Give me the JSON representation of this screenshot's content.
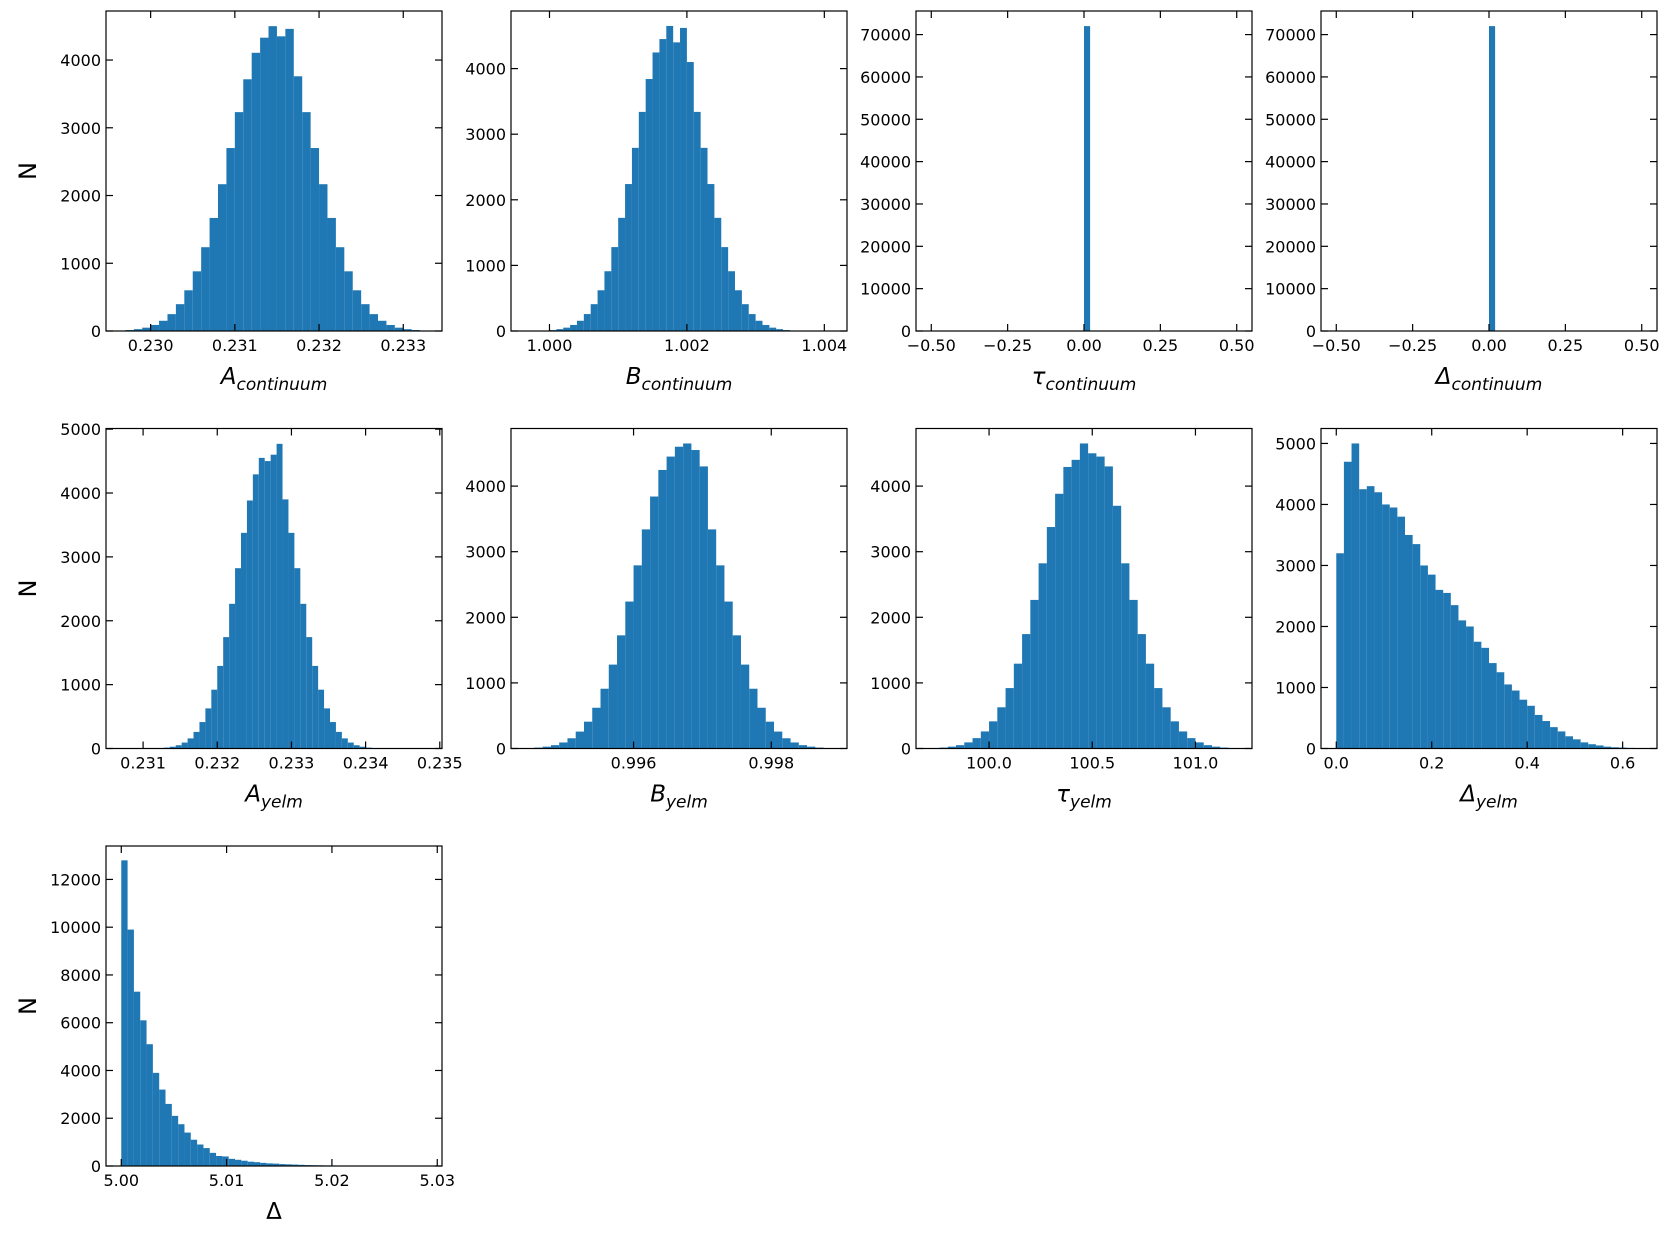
{
  "chart_data": [
    {
      "type": "histogram",
      "xlabel": "A",
      "xlabel_sub": "continuum",
      "ylabel": "N",
      "color": "#1f77b4",
      "bins": [
        0.2296,
        0.2297,
        0.2298,
        0.2299,
        0.23,
        0.2301,
        0.2302,
        0.2303,
        0.2304,
        0.2305,
        0.2306,
        0.2307,
        0.2308,
        0.2309,
        0.231,
        0.2311,
        0.2312,
        0.2313,
        0.2314,
        0.2315,
        0.2316,
        0.2317,
        0.2318,
        0.2319,
        0.232,
        0.2321,
        0.2322,
        0.2323,
        0.2324,
        0.2325,
        0.2326,
        0.2327,
        0.2328,
        0.2329,
        0.233,
        0.2331,
        0.2332,
        0.2333
      ],
      "values": [
        7,
        14,
        27,
        49,
        89,
        151,
        249,
        396,
        601,
        881,
        1237,
        1669,
        2167,
        2701,
        3231,
        3716,
        4107,
        4330,
        4500,
        4350,
        4460,
        3760,
        3231,
        2701,
        2167,
        1669,
        1237,
        881,
        601,
        396,
        249,
        151,
        89,
        49,
        27,
        14,
        7
      ],
      "xlim": [
        0.22947,
        0.23346
      ],
      "xticks": [
        {
          "value": 0.23,
          "label": "0.230"
        },
        0.231,
        0.232,
        0.233
      ],
      "ylim": [
        0,
        4724
      ],
      "yticks": [
        0,
        1000,
        2000,
        3000,
        4000
      ]
    },
    {
      "type": "histogram",
      "xlabel": "B",
      "xlabel_sub": "continuum",
      "color": "#1f77b4",
      "bins": [
        0.9999,
        1,
        1.0001,
        1.0002,
        1.0003,
        1.0004,
        1.0005,
        1.0006,
        1.0007,
        1.0008,
        1.0009,
        1.001,
        1.0011,
        1.0012,
        1.0013,
        1.0014,
        1.0015,
        1.0016,
        1.0017,
        1.0018,
        1.0019,
        1.002,
        1.0021,
        1.0022,
        1.0023,
        1.0024,
        1.0025,
        1.0026,
        1.0027,
        1.0028,
        1.0029,
        1.003,
        1.0031,
        1.0032,
        1.0033,
        1.0034,
        1.0035,
        1.0036
      ],
      "values": [
        7,
        14,
        28,
        51,
        92,
        156,
        258,
        409,
        621,
        911,
        1279,
        1725,
        2240,
        2792,
        3340,
        3841,
        4246,
        4450,
        4650,
        4400,
        4620,
        4100,
        3340,
        2792,
        2240,
        1725,
        1279,
        911,
        621,
        409,
        258,
        156,
        92,
        51,
        28,
        14,
        7
      ],
      "xlim": [
        0.99944,
        1.00433
      ],
      "xticks": [
        {
          "value": 1,
          "label": "1.000"
        },
        1.002,
        1.004
      ],
      "ylim": [
        0,
        4878
      ],
      "yticks": [
        0,
        1000,
        2000,
        3000,
        4000
      ]
    },
    {
      "type": "histogram",
      "xlabel": "τ",
      "xlabel_sub": "continuum",
      "color": "#1f77b4",
      "bins": [
        0,
        0.02
      ],
      "values": [
        72000
      ],
      "xlim": [
        -0.55,
        0.55
      ],
      "xticks": [
        {
          "value": -0.5,
          "label": "−0.50"
        },
        {
          "value": -0.25,
          "label": "−0.25"
        },
        {
          "value": 0,
          "label": "0.00"
        },
        0.25,
        {
          "value": 0.5,
          "label": "0.50"
        }
      ],
      "ylim": [
        0,
        75570
      ],
      "yticks": [
        0,
        10000,
        20000,
        30000,
        40000,
        50000,
        60000,
        70000
      ]
    },
    {
      "type": "histogram",
      "xlabel": "Δ",
      "xlabel_sub": "continuum",
      "color": "#1f77b4",
      "bins": [
        0,
        0.02
      ],
      "values": [
        72000
      ],
      "xlim": [
        -0.55,
        0.55
      ],
      "xticks": [
        {
          "value": -0.5,
          "label": "−0.50"
        },
        {
          "value": -0.25,
          "label": "−0.25"
        },
        {
          "value": 0,
          "label": "0.00"
        },
        0.25,
        {
          "value": 0.5,
          "label": "0.50"
        }
      ],
      "ylim": [
        0,
        75570
      ],
      "yticks": [
        0,
        10000,
        20000,
        30000,
        40000,
        50000,
        60000,
        70000
      ]
    },
    {
      "type": "histogram",
      "xlabel": "A",
      "xlabel_sub": "yelm",
      "ylabel": "N",
      "color": "#1f77b4",
      "bins": [
        0.2312,
        0.23128,
        0.23136,
        0.23144,
        0.23152,
        0.2316,
        0.23168,
        0.23176,
        0.23184,
        0.23192,
        0.232,
        0.23208,
        0.23216,
        0.23224,
        0.23232,
        0.2324,
        0.23248,
        0.23256,
        0.23264,
        0.23272,
        0.2328,
        0.23288,
        0.23296,
        0.23304,
        0.23312,
        0.2332,
        0.23328,
        0.23336,
        0.23344,
        0.23352,
        0.2336,
        0.23368,
        0.23376,
        0.23384,
        0.23392,
        0.234,
        0.23408,
        0.23416
      ],
      "values": [
        7,
        14,
        28,
        51,
        93,
        158,
        260,
        414,
        628,
        921,
        1293,
        1744,
        2265,
        2823,
        3376,
        3883,
        4292,
        4550,
        4500,
        4600,
        4770,
        3900,
        3376,
        2823,
        2265,
        1744,
        1293,
        921,
        628,
        414,
        260,
        158,
        93,
        51,
        28,
        14,
        7
      ],
      "xlim": [
        0.2305,
        0.23503
      ],
      "xticks": [
        0.231,
        0.232,
        0.233,
        0.234,
        0.235
      ],
      "ylim": [
        0,
        5010
      ],
      "yticks": [
        0,
        1000,
        2000,
        3000,
        4000,
        5000
      ]
    },
    {
      "type": "histogram",
      "xlabel": "B",
      "xlabel_sub": "yelm",
      "color": "#1f77b4",
      "bins": [
        0.99444,
        0.99456,
        0.99468,
        0.9948,
        0.99492,
        0.99504,
        0.99516,
        0.99528,
        0.9954,
        0.99552,
        0.99564,
        0.99576,
        0.99588,
        0.996,
        0.99612,
        0.99624,
        0.99636,
        0.99648,
        0.9966,
        0.99672,
        0.99684,
        0.99696,
        0.99708,
        0.9972,
        0.99732,
        0.99744,
        0.99756,
        0.99768,
        0.9978,
        0.99792,
        0.99804,
        0.99816,
        0.99828,
        0.9984,
        0.99852,
        0.99864,
        0.99876,
        0.99888
      ],
      "values": [
        7,
        14,
        28,
        51,
        92,
        156,
        258,
        409,
        621,
        911,
        1279,
        1725,
        2240,
        2792,
        3340,
        3841,
        4246,
        4450,
        4600,
        4650,
        4550,
        4300,
        3340,
        2792,
        2240,
        1725,
        1279,
        911,
        621,
        409,
        258,
        156,
        92,
        51,
        28,
        14,
        7
      ],
      "xlim": [
        0.99422,
        0.9991
      ],
      "xticks": [
        0.996,
        0.998
      ],
      "ylim": [
        0,
        4878
      ],
      "yticks": [
        0,
        1000,
        2000,
        3000,
        4000
      ]
    },
    {
      "type": "histogram",
      "xlabel": "τ",
      "xlabel_sub": "yelm",
      "color": "#1f77b4",
      "bins": [
        99.72,
        99.76,
        99.8,
        99.84,
        99.88,
        99.92,
        99.96,
        100,
        100.04,
        100.08,
        100.12,
        100.16,
        100.2,
        100.24,
        100.28,
        100.32,
        100.36,
        100.4,
        100.44,
        100.48,
        100.52,
        100.56,
        100.6,
        100.64,
        100.68,
        100.72,
        100.76,
        100.8,
        100.84,
        100.88,
        100.92,
        100.96,
        101,
        101.04,
        101.08,
        101.12,
        101.16,
        101.2
      ],
      "values": [
        7,
        14,
        28,
        51,
        93,
        158,
        260,
        414,
        628,
        921,
        1293,
        1744,
        2265,
        2823,
        3376,
        3883,
        4292,
        4400,
        4650,
        4500,
        4450,
        4300,
        3700,
        2823,
        2265,
        1744,
        1293,
        921,
        628,
        414,
        260,
        158,
        93,
        51,
        28,
        14,
        7
      ],
      "xlim": [
        99.646,
        101.274
      ],
      "xticks": [
        {
          "value": 100,
          "label": "100.0"
        },
        100.5,
        {
          "value": 101,
          "label": "101.0"
        }
      ],
      "ylim": [
        0,
        4878
      ],
      "yticks": [
        0,
        1000,
        2000,
        3000,
        4000
      ]
    },
    {
      "type": "histogram",
      "xlabel": "Δ",
      "xlabel_sub": "yelm",
      "color": "#1f77b4",
      "bins": [
        0,
        0.016,
        0.032,
        0.048,
        0.064,
        0.08,
        0.096,
        0.112,
        0.128,
        0.144,
        0.16,
        0.176,
        0.192,
        0.208,
        0.224,
        0.24,
        0.256,
        0.272,
        0.288,
        0.304,
        0.32,
        0.336,
        0.352,
        0.368,
        0.384,
        0.4,
        0.416,
        0.432,
        0.448,
        0.464,
        0.48,
        0.496,
        0.512,
        0.528,
        0.544,
        0.56,
        0.576,
        0.592,
        0.608,
        0.624,
        0.64
      ],
      "values": [
        3200,
        4700,
        5000,
        4250,
        4300,
        4200,
        4000,
        3950,
        3800,
        3500,
        3350,
        3000,
        2850,
        2600,
        2550,
        2350,
        2100,
        2000,
        1750,
        1650,
        1400,
        1250,
        1050,
        950,
        800,
        700,
        550,
        450,
        350,
        280,
        200,
        150,
        100,
        70,
        50,
        30,
        20,
        15,
        10,
        5
      ],
      "xlim": [
        -0.032,
        0.672
      ],
      "xticks": [
        {
          "value": 0,
          "label": "0.0"
        },
        0.2,
        0.4,
        0.6
      ],
      "ylim": [
        0,
        5245
      ],
      "yticks": [
        0,
        1000,
        2000,
        3000,
        4000,
        5000
      ]
    },
    {
      "type": "histogram",
      "xlabel": "Δ",
      "ylabel": "N",
      "color": "#1f77b4",
      "bins": [
        5,
        5.0006,
        5.0012,
        5.0018,
        5.0024,
        5.003,
        5.0036,
        5.0042,
        5.0048,
        5.0054,
        5.006,
        5.0066,
        5.0072,
        5.0078,
        5.0084,
        5.009,
        5.0096,
        5.0102,
        5.0108,
        5.0114,
        5.012,
        5.0126,
        5.0132,
        5.0138,
        5.0144,
        5.015,
        5.0156,
        5.0162,
        5.0168,
        5.0174,
        5.018,
        5.0186,
        5.0192,
        5.0198,
        5.0204,
        5.021,
        5.0216,
        5.0222,
        5.0228,
        5.0234,
        5.024,
        5.0246,
        5.0252,
        5.0258,
        5.0264,
        5.027,
        5.0276,
        5.0282,
        5.0288
      ],
      "values": [
        12800,
        9900,
        7300,
        6100,
        5100,
        3900,
        3200,
        2600,
        2100,
        1750,
        1400,
        1100,
        900,
        750,
        550,
        420,
        400,
        300,
        260,
        220,
        180,
        160,
        130,
        110,
        100,
        80,
        70,
        60,
        50,
        40,
        35,
        30,
        25,
        22,
        18,
        15,
        12,
        10,
        8,
        6,
        5,
        4,
        3,
        3,
        2,
        2,
        1,
        1
      ],
      "xlim": [
        4.99855,
        5.03045
      ],
      "xticks": [
        {
          "value": 5,
          "label": "5.00"
        },
        5.01,
        5.02,
        5.03
      ],
      "ylim": [
        0,
        13400
      ],
      "yticks": [
        0,
        2000,
        4000,
        6000,
        8000,
        10000,
        12000
      ]
    }
  ]
}
